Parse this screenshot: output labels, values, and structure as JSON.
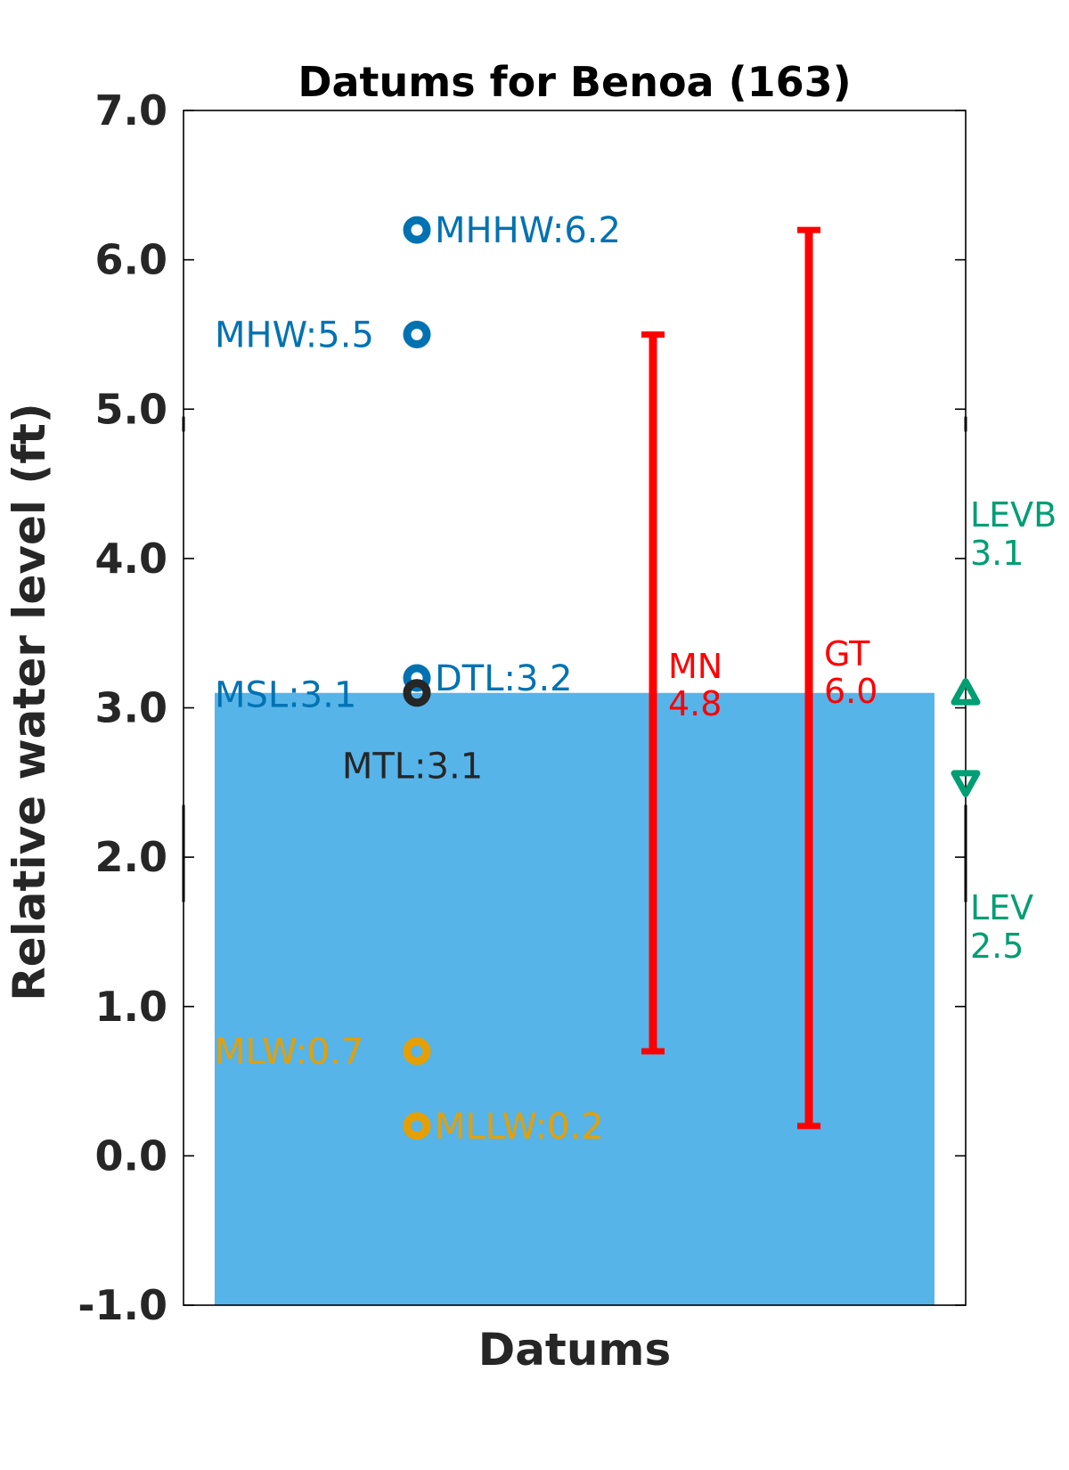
{
  "chart_data": {
    "type": "bar",
    "title": "Datums for Benoa (163)",
    "xlabel": "Datums",
    "ylabel": "Relative water level (ft)",
    "ylim": [
      -1.0,
      7.0
    ],
    "yticks": [
      "-1.0",
      "0.0",
      "1.0",
      "2.0",
      "3.0",
      "4.0",
      "5.0",
      "6.0",
      "7.0"
    ],
    "bar": {
      "top": 3.1,
      "bottom": -1.0,
      "color": "#56b4e9"
    },
    "datums": [
      {
        "name": "MHHW",
        "value": 6.2,
        "label": "MHHW:6.2",
        "color": "#0072b2",
        "label_side": "right"
      },
      {
        "name": "MHW",
        "value": 5.5,
        "label": "MHW:5.5",
        "color": "#0072b2",
        "label_side": "left"
      },
      {
        "name": "DTL",
        "value": 3.2,
        "label": "DTL:3.2",
        "color": "#0072b2",
        "label_side": "right"
      },
      {
        "name": "MSL",
        "value": 3.1,
        "label": "MSL:3.1",
        "color": "#0072b2",
        "label_side": "left"
      },
      {
        "name": "MTL",
        "value": 3.1,
        "label": "MTL:3.1",
        "color": "#262626",
        "label_side": "below"
      },
      {
        "name": "MLW",
        "value": 0.7,
        "label": "MLW:0.7",
        "color": "#e69f00",
        "label_side": "left"
      },
      {
        "name": "MLLW",
        "value": 0.2,
        "label": "MLLW:0.2",
        "color": "#e69f00",
        "label_side": "right"
      }
    ],
    "ranges": [
      {
        "name": "MN",
        "value_text": "4.8",
        "low": 0.7,
        "high": 5.5,
        "color": "#ff0000"
      },
      {
        "name": "GT",
        "value_text": "6.0",
        "low": 0.2,
        "high": 6.2,
        "color": "#ff0000"
      }
    ],
    "levels": [
      {
        "name": "LEVB",
        "value_text": "3.1",
        "value": 3.1,
        "marker": "triangle-up",
        "color": "#009e73"
      },
      {
        "name": "LEV",
        "value_text": "2.5",
        "value": 2.5,
        "marker": "triangle-down",
        "color": "#009e73"
      }
    ]
  }
}
